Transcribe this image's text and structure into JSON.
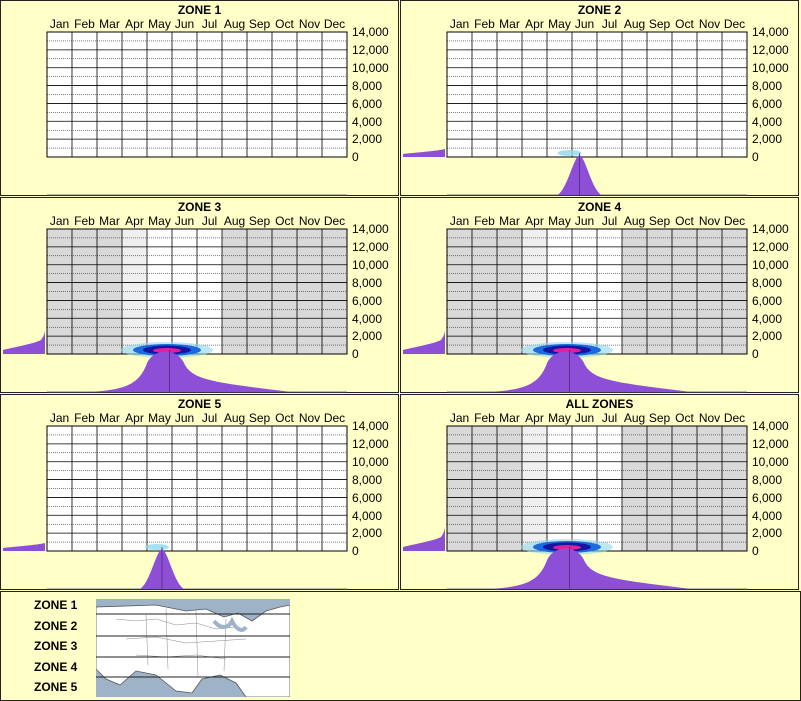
{
  "months": [
    "Jan",
    "Feb",
    "Mar",
    "Apr",
    "May",
    "Jun",
    "Jul",
    "Aug",
    "Sep",
    "Oct",
    "Nov",
    "Dec"
  ],
  "yticks": [
    "14,000",
    "12,000",
    "10,000",
    "8,000",
    "6,000",
    "4,000",
    "2,000",
    "0"
  ],
  "panels": [
    {
      "title": "ZONE 1",
      "left_profile": false,
      "bottom_profile": false,
      "shade": false,
      "heat": 0
    },
    {
      "title": "ZONE 2",
      "left_profile": true,
      "bottom_profile": "narrow",
      "shade": false,
      "heat": 1
    },
    {
      "title": "ZONE 3",
      "left_profile": true,
      "bottom_profile": "wide",
      "shade": true,
      "heat": 3
    },
    {
      "title": "ZONE 4",
      "left_profile": true,
      "bottom_profile": "wide",
      "shade": true,
      "heat": 3
    },
    {
      "title": "ZONE 5",
      "left_profile": true,
      "bottom_profile": "narrow",
      "shade": false,
      "heat": 1
    },
    {
      "title": "ALL ZONES",
      "left_profile": true,
      "bottom_profile": "wide",
      "shade": true,
      "heat": 3
    }
  ],
  "legend": {
    "zones": [
      "ZONE 1",
      "ZONE 2",
      "ZONE 3",
      "ZONE 4",
      "ZONE 5"
    ]
  },
  "colors": {
    "profile": "#8d4fd6",
    "grid": "#000000",
    "shade": "#d9d9d9",
    "bg": "#ffffc8",
    "heat_outer": "#8fd8ee",
    "heat_mid": "#1a6be0",
    "heat_core": "#1515a0",
    "heat_center": "#e0209a"
  },
  "chart_data": {
    "type": "heatmap",
    "x_categories": [
      "Jan",
      "Feb",
      "Mar",
      "Apr",
      "May",
      "Jun",
      "Jul",
      "Aug",
      "Sep",
      "Oct",
      "Nov",
      "Dec"
    ],
    "ylim": [
      0,
      14000
    ],
    "ylabel": "",
    "series": [
      {
        "name": "ZONE 1",
        "peak_month": null,
        "peak_elevation": null
      },
      {
        "name": "ZONE 2",
        "peak_month": "Jun",
        "peak_elevation": 100
      },
      {
        "name": "ZONE 3",
        "peak_month": "May",
        "peak_elevation": 300
      },
      {
        "name": "ZONE 4",
        "peak_month": "May",
        "peak_elevation": 300
      },
      {
        "name": "ZONE 5",
        "peak_month": "May",
        "peak_elevation": 100
      },
      {
        "name": "ALL ZONES",
        "peak_month": "May",
        "peak_elevation": 300
      }
    ]
  }
}
